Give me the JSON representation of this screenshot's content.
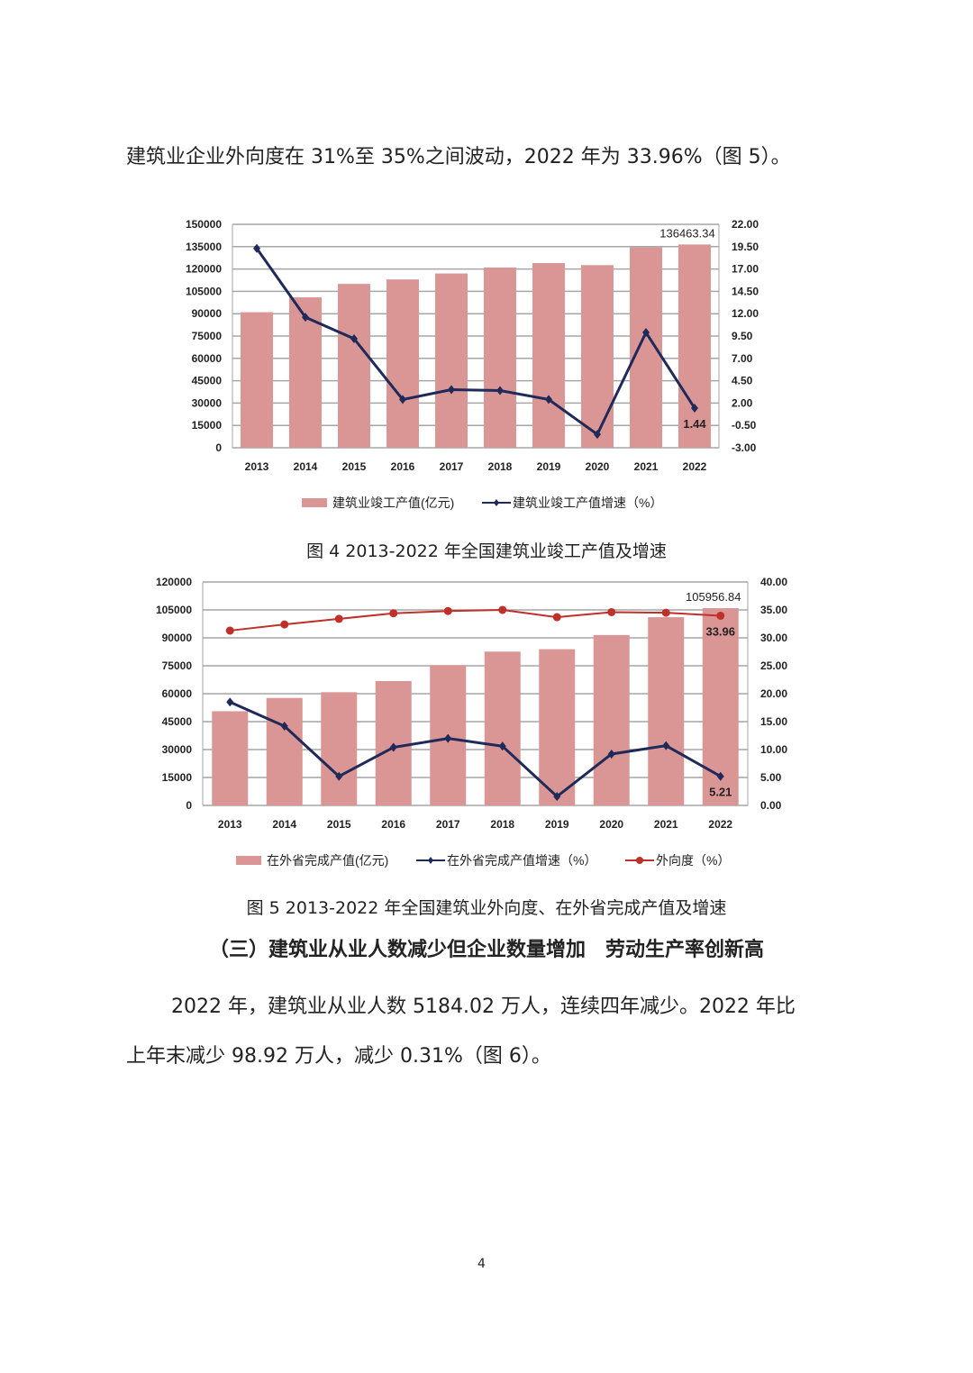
{
  "paragraph_top": "建筑业企业外向度在 31%至 35%之间波动，2022 年为 33.96%（图 5）。",
  "figure4_caption": "图 4 2013-2022 年全国建筑业竣工产值及增速",
  "figure5_caption": "图 5 2013-2022 年全国建筑业外向度、在外省完成产值及增速",
  "section_heading": "（三）建筑业从业人数减少但企业数量增加　劳动生产率创新高",
  "paragraph_bottom_line1": "2022 年，建筑业从业人数 5184.02 万人，连续四年减少。2022 年比",
  "paragraph_bottom_line2": "上年末减少 98.92 万人，减少 0.31%（图 6）。",
  "page_number": "4",
  "colors": {
    "bar": "#d99694",
    "line_blue": "#1f2a5a",
    "line_red": "#c0302a",
    "grid": "#a6a6a6"
  },
  "chart_data": [
    {
      "type": "bar+line",
      "title": "",
      "categories": [
        "2013",
        "2014",
        "2015",
        "2016",
        "2017",
        "2018",
        "2019",
        "2020",
        "2021",
        "2022"
      ],
      "left_ylim": [
        0,
        150000
      ],
      "left_ticks": [
        "0",
        "15000",
        "30000",
        "45000",
        "60000",
        "75000",
        "90000",
        "105000",
        "120000",
        "135000",
        "150000"
      ],
      "right_ylim": [
        -3,
        22
      ],
      "right_ticks": [
        "-3.00",
        "-0.50",
        "2.00",
        "4.50",
        "7.00",
        "9.50",
        "12.00",
        "14.50",
        "17.00",
        "19.50",
        "22.00"
      ],
      "grid": true,
      "legend_placement": "bottom",
      "series": [
        {
          "name": "建筑业竣工产值(亿元)",
          "kind": "bar",
          "axis": "left",
          "values": [
            91000,
            101000,
            110000,
            113000,
            117000,
            121000,
            124000,
            122600,
            134500,
            136463.34
          ],
          "label_last": "136463.34"
        },
        {
          "name": "建筑业竣工产值增速（%）",
          "kind": "line",
          "axis": "right",
          "marker": "diamond",
          "values": [
            19.3,
            11.6,
            9.2,
            2.4,
            3.5,
            3.4,
            2.4,
            -1.5,
            9.9,
            1.44
          ],
          "label_last": "1.44"
        }
      ]
    },
    {
      "type": "bar+line",
      "title": "",
      "categories": [
        "2013",
        "2014",
        "2015",
        "2016",
        "2017",
        "2018",
        "2019",
        "2020",
        "2021",
        "2022"
      ],
      "left_ylim": [
        0,
        120000
      ],
      "left_ticks": [
        "0",
        "15000",
        "30000",
        "45000",
        "60000",
        "75000",
        "90000",
        "105000",
        "120000"
      ],
      "right_ylim": [
        0,
        40
      ],
      "right_ticks": [
        "0.00",
        "5.00",
        "10.00",
        "15.00",
        "20.00",
        "25.00",
        "30.00",
        "35.00",
        "40.00"
      ],
      "grid": true,
      "legend_placement": "bottom",
      "series": [
        {
          "name": "在外省完成产值(亿元)",
          "kind": "bar",
          "axis": "left",
          "values": [
            50600,
            57700,
            60800,
            66800,
            75300,
            82600,
            83900,
            91500,
            101100,
            105956.84
          ],
          "label_last": "105956.84"
        },
        {
          "name": "在外省完成产值增速（%）",
          "kind": "line",
          "axis": "right",
          "marker": "diamond",
          "values": [
            18.5,
            14.2,
            5.2,
            10.4,
            12.0,
            10.6,
            1.6,
            9.2,
            10.7,
            5.21
          ],
          "label_last": "5.21"
        },
        {
          "name": "外向度（%）",
          "kind": "line",
          "axis": "right",
          "marker": "circle",
          "values": [
            31.3,
            32.4,
            33.4,
            34.4,
            34.8,
            35.0,
            33.7,
            34.6,
            34.5,
            33.96
          ],
          "label_last": "33.96"
        }
      ]
    }
  ]
}
